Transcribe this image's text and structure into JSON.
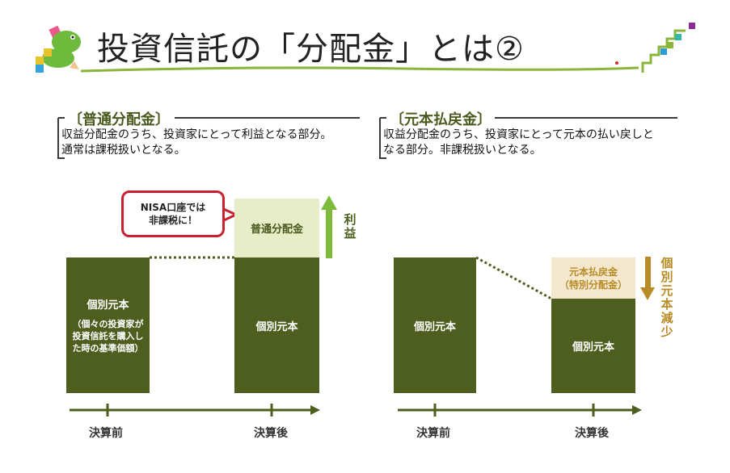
{
  "title": "投資信託の「分配金」とは②",
  "sections": {
    "ordinary": {
      "heading": "〔普通分配金〕",
      "lines": [
        "収益分配金のうち、投資家にとって利益となる部分。",
        "通常は課税扱いとなる。"
      ]
    },
    "principal": {
      "heading": "〔元本払戻金〕",
      "lines": [
        "収益分配金のうち、投資家にとって元本の払い戻しと",
        "なる部分。非課税扱いとなる。"
      ]
    }
  },
  "left_diagram": {
    "before_bar": {
      "label": "個別元本",
      "note_lines": [
        "（個々の投資家が",
        "投資信託を購入し",
        "た時の基準価額）"
      ]
    },
    "after_bar": {
      "label": "個別元本"
    },
    "distribution": "普通分配金",
    "callout_lines": [
      "NISA口座では",
      "非課税に！"
    ],
    "arrow_label": "利益",
    "x_labels": [
      "決算前",
      "決算後"
    ]
  },
  "right_diagram": {
    "before_bar": {
      "label": "個別元本"
    },
    "after_bar": {
      "label": "個別元本"
    },
    "distribution_lines": [
      "元本払戻金",
      "（特別分配金）"
    ],
    "arrow_label": "個別元本減少",
    "x_labels": [
      "決算前",
      "決算後"
    ]
  },
  "colors": {
    "dark_green": "#4e5e1e",
    "light_green": "#e7edc8",
    "arrow_green": "#7dbb3a",
    "beige": "#f3e7cd",
    "gold": "#b88b26",
    "callout_red": "#c8202e"
  }
}
